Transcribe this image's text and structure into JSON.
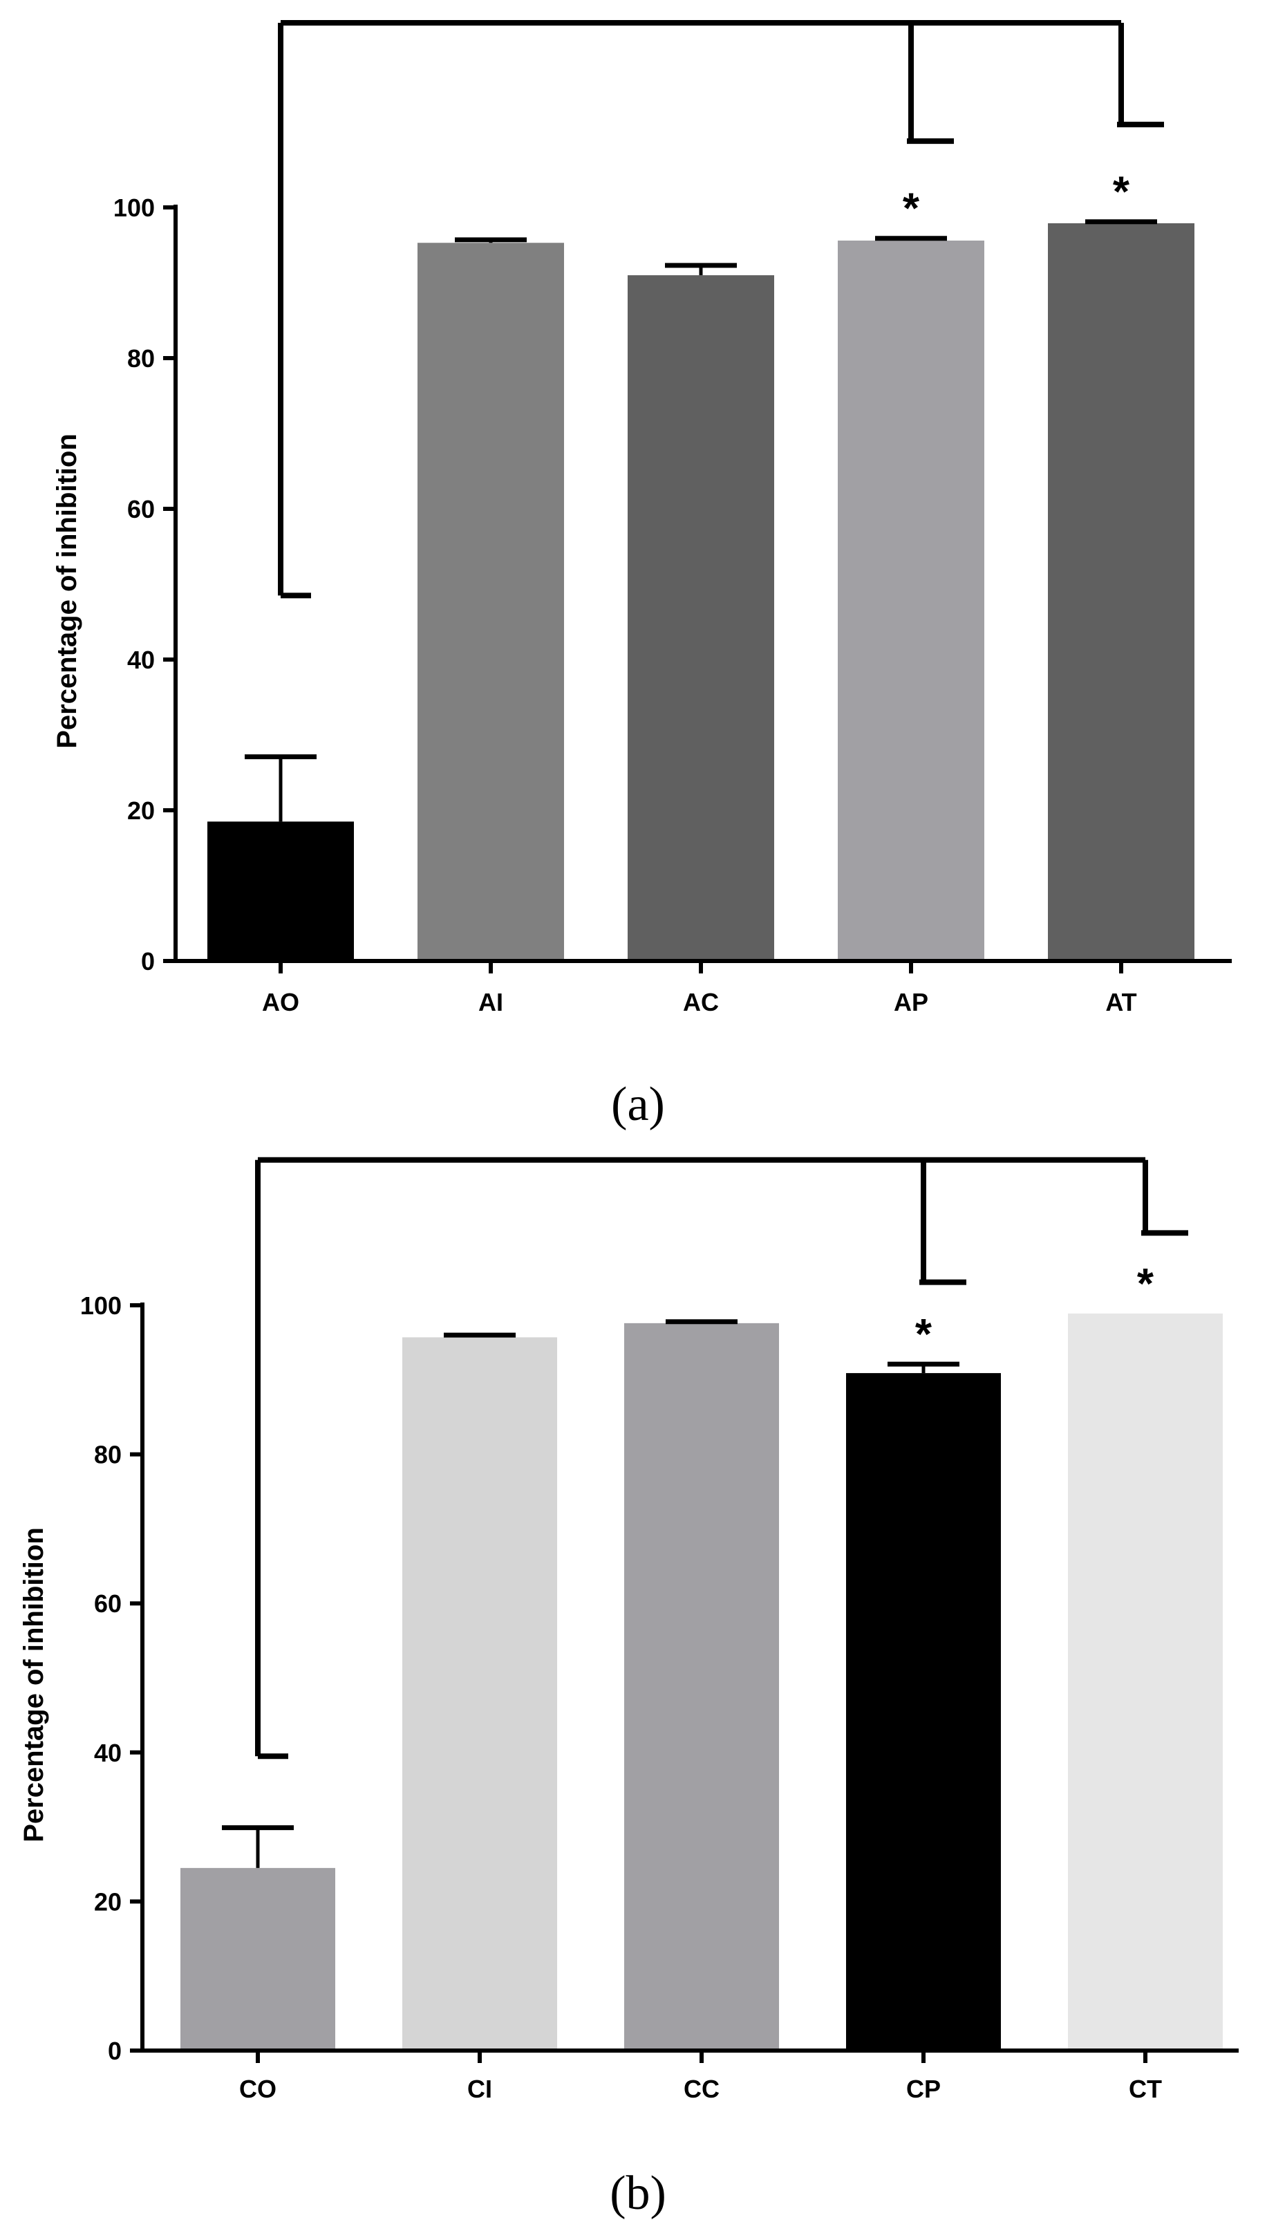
{
  "chart_data": [
    {
      "type": "bar",
      "panel_label": "(a)",
      "categories": [
        "AO",
        "AI",
        "AC",
        "AP",
        "AT"
      ],
      "values": [
        18.5,
        95.3,
        91.0,
        95.6,
        97.9
      ],
      "errors": [
        8.6,
        0.4,
        1.3,
        0.3,
        0.2
      ],
      "colors": [
        "#000000",
        "#808080",
        "#606060",
        "#a1a0a4",
        "#606060"
      ],
      "xlabel": "",
      "ylabel": "Percentage of inhibition",
      "ylim": [
        0,
        100
      ],
      "yticks": [
        0,
        20,
        40,
        60,
        80,
        100
      ],
      "significance": [
        "",
        "",
        "",
        "*",
        "*"
      ],
      "bracket": {
        "from": "AO",
        "to": [
          "AP",
          "AT"
        ],
        "left_end": 48.5,
        "right_ends": [
          108.8,
          111.0
        ],
        "top": 124.5
      }
    },
    {
      "type": "bar",
      "panel_label": "(b)",
      "categories": [
        "CO",
        "CI",
        "CC",
        "CP",
        "CT"
      ],
      "values": [
        24.5,
        95.7,
        97.6,
        90.9,
        98.9
      ],
      "errors": [
        5.4,
        0.3,
        0.2,
        1.2,
        0.0
      ],
      "colors": [
        "#a1a0a4",
        "#d5d5d5",
        "#a1a0a4",
        "#000000",
        "#e6e6e6"
      ],
      "xlabel": "",
      "ylabel": "Percentage of inhibition",
      "ylim": [
        0,
        100
      ],
      "yticks": [
        0,
        20,
        40,
        60,
        80,
        100
      ],
      "significance": [
        "",
        "",
        "",
        "*",
        "*"
      ],
      "bracket": {
        "from": "CO",
        "to": [
          "CP",
          "CT"
        ],
        "left_end": 39.5,
        "right_ends": [
          103.1,
          109.7
        ],
        "top": 119.5
      }
    }
  ]
}
